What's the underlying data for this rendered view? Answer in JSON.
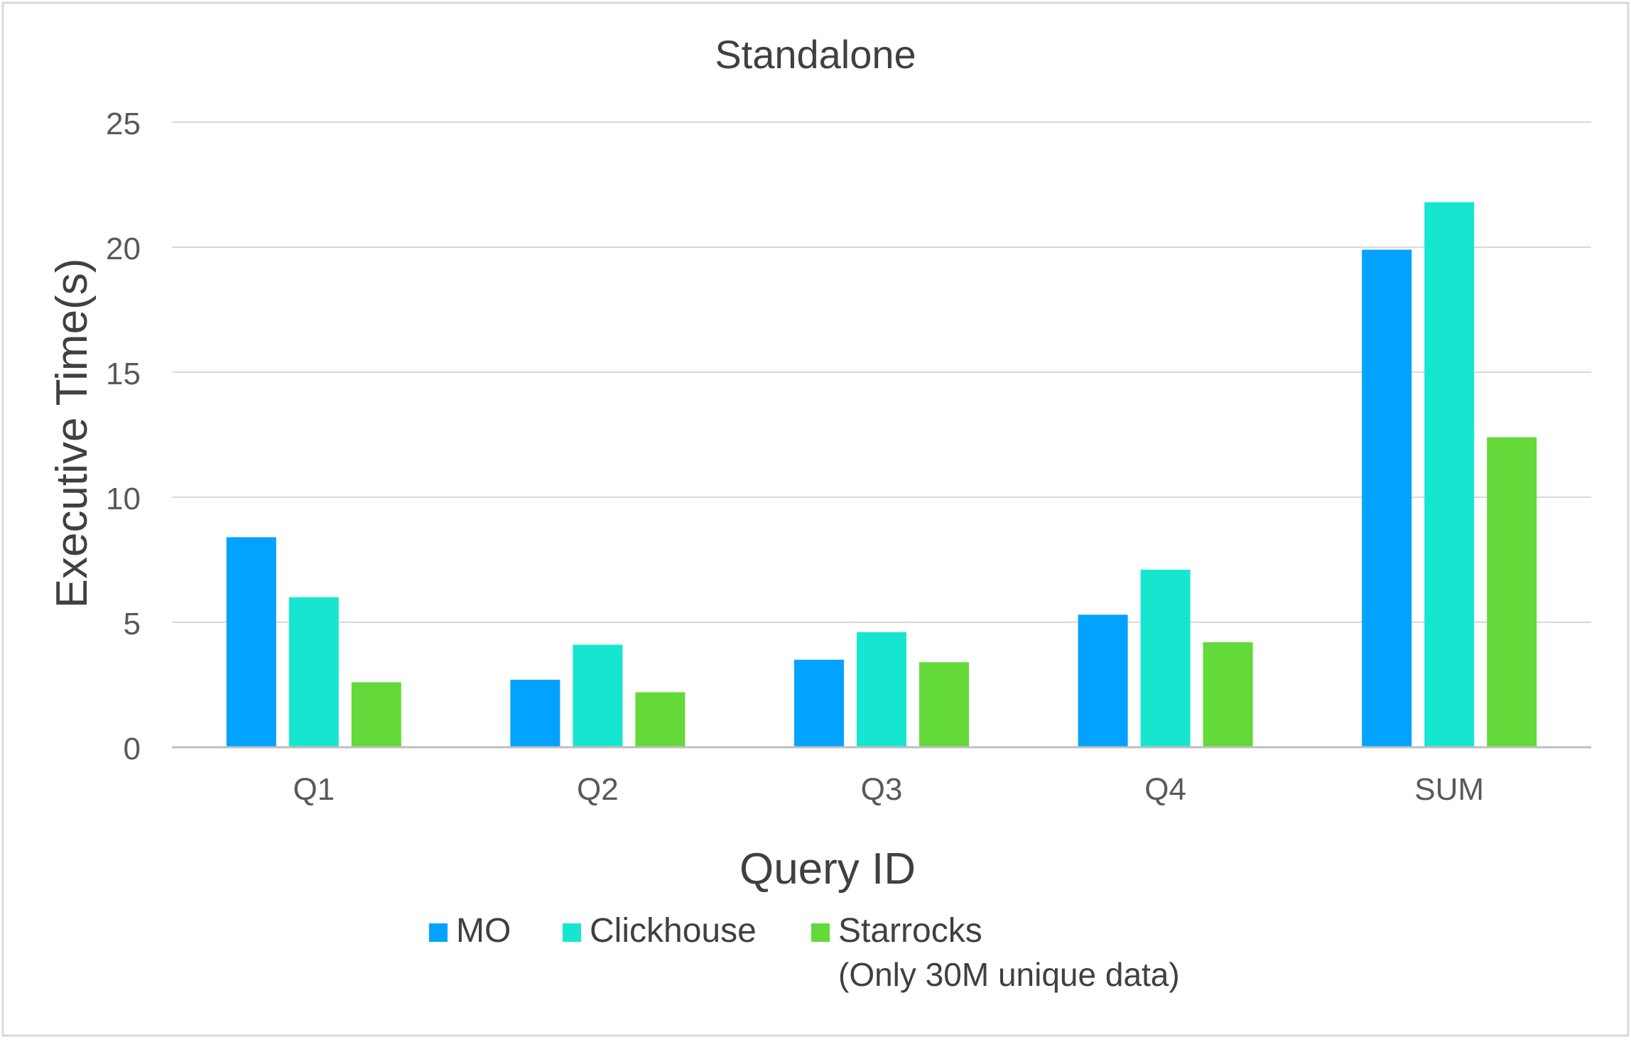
{
  "chart_data": {
    "type": "bar",
    "title": "Standalone",
    "xlabel": "Query ID",
    "ylabel": "Executive Time(s)",
    "categories": [
      "Q1",
      "Q2",
      "Q3",
      "Q4",
      "SUM"
    ],
    "ylim": [
      0,
      25
    ],
    "yticks": [
      0,
      5,
      10,
      15,
      20,
      25
    ],
    "grid": true,
    "legend_position": "bottom",
    "series": [
      {
        "name": "MO",
        "color": "#03A2FF",
        "values": [
          8.4,
          2.7,
          3.5,
          5.3,
          19.9
        ]
      },
      {
        "name": "Clickhouse",
        "color": "#16E6CF",
        "values": [
          6.0,
          4.1,
          4.6,
          7.1,
          21.8
        ]
      },
      {
        "name": "Starrocks",
        "name_line2": "(Only 30M unique data)",
        "color": "#63D93A",
        "values": [
          2.6,
          2.2,
          3.4,
          4.2,
          12.4
        ]
      }
    ]
  }
}
